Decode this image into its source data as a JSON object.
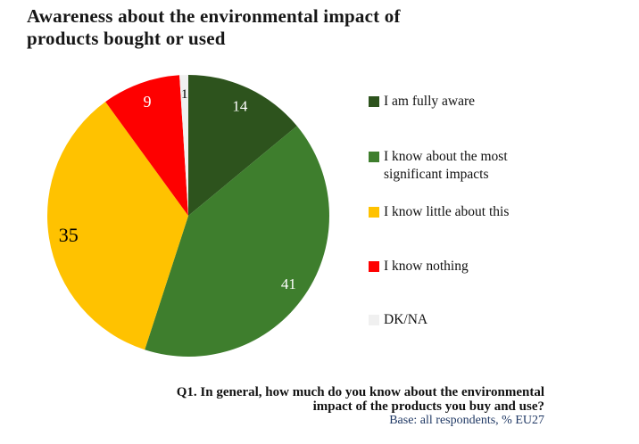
{
  "title": {
    "line1": "Awareness about the environmental impact of",
    "line2": "products bought or used"
  },
  "chart_data": {
    "type": "pie",
    "title": "Awareness about the environmental impact of products bought or used",
    "unit": "%",
    "total": 100,
    "start_angle_deg": 0,
    "direction": "clockwise",
    "legend_position": "right",
    "slices": [
      {
        "label": "I am fully aware",
        "value": 14,
        "color": "#2d531d",
        "label_color": "#ffffff",
        "label_size": 17
      },
      {
        "label": "I know about the most significant impacts",
        "value": 41,
        "color": "#3e7e2d",
        "label_color": "#ffffff",
        "label_size": 17
      },
      {
        "label": "I know little about this",
        "value": 35,
        "color": "#ffc200",
        "label_color": "#000000",
        "label_size": 22
      },
      {
        "label": "I know nothing",
        "value": 9,
        "color": "#fe0000",
        "label_color": "#ffffff",
        "label_size": 18
      },
      {
        "label": "DK/NA",
        "value": 1,
        "color": "#f0f0f0",
        "label_color": "#000000",
        "label_size": 15
      }
    ]
  },
  "footer": {
    "question_line1": "Q1. In general, how much do you know about the environmental",
    "question_line2": "impact of the products you buy and use?",
    "base_note": "Base: all respondents, % EU27"
  }
}
